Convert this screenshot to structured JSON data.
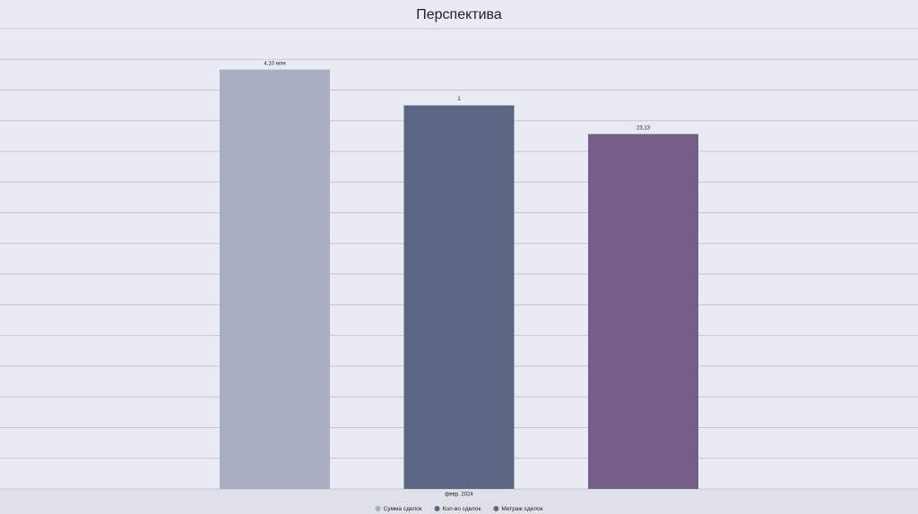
{
  "chart_data": {
    "type": "bar",
    "title": "Перспектива",
    "categories": [
      "февр. 2024"
    ],
    "grid": true,
    "series": [
      {
        "name": "Сумма сделок",
        "color": "#a8aec0",
        "values": [
          4100000
        ],
        "value_labels": [
          "4,10 млн"
        ],
        "ylim": [
          0,
          4500000
        ]
      },
      {
        "name": "Кол-во сделок",
        "color": "#5c6784",
        "values": [
          1
        ],
        "ylim": [
          0,
          1.2
        ]
      },
      {
        "name": "Метраж сделок",
        "color": "#735f85",
        "values": [
          23.13
        ],
        "value_labels": [
          "23,13"
        ],
        "ylim": [
          0,
          30
        ]
      }
    ]
  }
}
